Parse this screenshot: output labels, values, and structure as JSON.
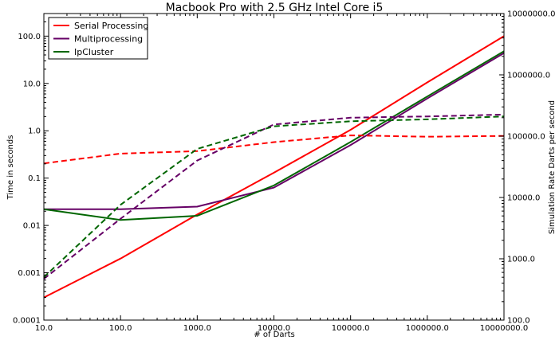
{
  "chart_data": {
    "type": "line",
    "title": "Macbook Pro with 2.5 GHz Intel Core i5",
    "xlabel": "# of Darts",
    "ylabel": "Time in seconds",
    "y2label": "Simulation Rate Darts per second",
    "x_scale": "log",
    "y_scale": "log",
    "y2_scale": "log",
    "xlim": [
      10,
      10000000
    ],
    "ylim": [
      0.0001,
      300
    ],
    "y2lim": [
      100,
      10000000
    ],
    "x_ticks": [
      {
        "value": 10,
        "label": "10.0"
      },
      {
        "value": 100,
        "label": "100.0"
      },
      {
        "value": 1000,
        "label": "1000.0"
      },
      {
        "value": 10000,
        "label": "10000.0"
      },
      {
        "value": 100000,
        "label": "100000.0"
      },
      {
        "value": 1000000,
        "label": "1000000.0"
      },
      {
        "value": 10000000,
        "label": "10000000.0"
      }
    ],
    "y_ticks": [
      {
        "value": 0.0001,
        "label": "0.0001"
      },
      {
        "value": 0.001,
        "label": "0.001"
      },
      {
        "value": 0.01,
        "label": "0.01"
      },
      {
        "value": 0.1,
        "label": "0.1"
      },
      {
        "value": 1,
        "label": "1.0"
      },
      {
        "value": 10,
        "label": "10.0"
      },
      {
        "value": 100,
        "label": "100.0"
      }
    ],
    "y2_ticks": [
      {
        "value": 100,
        "label": "100.0"
      },
      {
        "value": 1000,
        "label": "1000.0"
      },
      {
        "value": 10000,
        "label": "10000.0"
      },
      {
        "value": 100000,
        "label": "100000.0"
      },
      {
        "value": 1000000,
        "label": "1000000.0"
      },
      {
        "value": 10000000,
        "label": "10000000.0"
      }
    ],
    "x": [
      10,
      100,
      1000,
      10000,
      100000,
      1000000,
      10000000
    ],
    "legend_position": "top-left",
    "grid": false,
    "series": [
      {
        "name": "Serial Processing",
        "color": "#ff0000",
        "axis": "left",
        "style": "solid",
        "values": [
          0.0003,
          0.002,
          0.017,
          0.13,
          1.05,
          10.5,
          100
        ]
      },
      {
        "name": "Multiprocessing",
        "color": "#660066",
        "axis": "left",
        "style": "solid",
        "values": [
          0.022,
          0.022,
          0.025,
          0.063,
          0.5,
          4.8,
          44
        ]
      },
      {
        "name": "IpCluster",
        "color": "#006600",
        "axis": "left",
        "style": "solid",
        "values": [
          0.022,
          0.013,
          0.016,
          0.07,
          0.58,
          5.3,
          48
        ]
      },
      {
        "axis": "right",
        "color": "#ff0000",
        "style": "dashed",
        "values": [
          36000,
          52000,
          57000,
          80000,
          103000,
          98000,
          101000
        ]
      },
      {
        "axis": "right",
        "color": "#660066",
        "style": "dashed",
        "values": [
          470,
          4500,
          40000,
          155000,
          200000,
          210000,
          225000
        ]
      },
      {
        "axis": "right",
        "color": "#006600",
        "style": "dashed",
        "values": [
          500,
          7600,
          62000,
          145000,
          175000,
          188000,
          210000
        ]
      }
    ]
  }
}
